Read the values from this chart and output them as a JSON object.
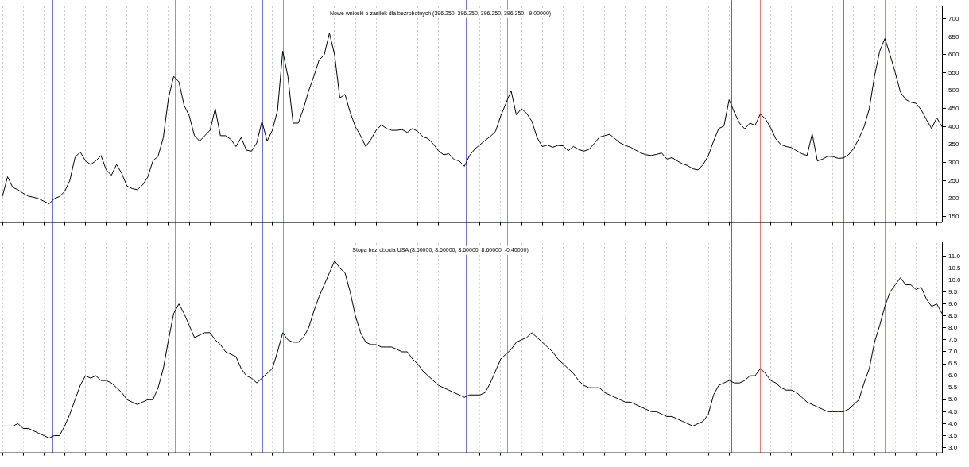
{
  "chart_data": [
    {
      "type": "line",
      "title": "Nowe wnioski o zasiłek dla bezrobotnych (396.250, 396.250, 396.250, 396.250, -9.00000)",
      "grid": "x",
      "legend": false,
      "marker": "none",
      "line_style": "solid",
      "categories": [
        null,
        null,
        null,
        null,
        null,
        null,
        null,
        null,
        null,
        null,
        null,
        null,
        null,
        null,
        null,
        null,
        null,
        null,
        null,
        null,
        null,
        null,
        null,
        null,
        null,
        null,
        null,
        null,
        null,
        null,
        null,
        null,
        null,
        null,
        null,
        null,
        null,
        null,
        null,
        null,
        null,
        null,
        null,
        null,
        null,
        null,
        null,
        null,
        null,
        null,
        null,
        null,
        null,
        null,
        null,
        null,
        null,
        null,
        null,
        null,
        null,
        null,
        null,
        null,
        null,
        null,
        null,
        null,
        null,
        null,
        null,
        null,
        null,
        null,
        null,
        null,
        null,
        null,
        null,
        null,
        null,
        null,
        null,
        null,
        null,
        null,
        null,
        null,
        null,
        null,
        null,
        null,
        null,
        null,
        null,
        null,
        null,
        null,
        null,
        null,
        null,
        null,
        null,
        null,
        null,
        null,
        null,
        null,
        null,
        null,
        null,
        null,
        null,
        null,
        null,
        null,
        null,
        null,
        null,
        null,
        null,
        null,
        null,
        null,
        null,
        null,
        null,
        null,
        null,
        null,
        null,
        null,
        null,
        null,
        null,
        null,
        null,
        null,
        null,
        null,
        null,
        null,
        null,
        null,
        null,
        null,
        null,
        null,
        null,
        null,
        null,
        null,
        null,
        null,
        null,
        null,
        null,
        null,
        null,
        null,
        null,
        null,
        null,
        null,
        null,
        null,
        null,
        null,
        null,
        null,
        null,
        null,
        null,
        null,
        null,
        null,
        null,
        null,
        null,
        null,
        null,
        null
      ],
      "ylim": [
        135,
        735
      ],
      "yticks": [
        150,
        200,
        250,
        300,
        350,
        400,
        450,
        500,
        550,
        600,
        650,
        700
      ],
      "series": [
        {
          "color": "#000000",
          "values": [
            206,
            261,
            231,
            225,
            215,
            207,
            204,
            200,
            193,
            186,
            200,
            206,
            220,
            251,
            315,
            330,
            305,
            295,
            305,
            320,
            280,
            265,
            295,
            270,
            235,
            228,
            225,
            238,
            260,
            305,
            318,
            370,
            480,
            540,
            525,
            460,
            430,
            375,
            360,
            375,
            390,
            450,
            375,
            375,
            365,
            345,
            370,
            335,
            332,
            355,
            415,
            360,
            390,
            445,
            610,
            540,
            410,
            410,
            450,
            500,
            540,
            585,
            600,
            660,
            600,
            480,
            490,
            440,
            400,
            375,
            345,
            365,
            390,
            405,
            395,
            390,
            390,
            392,
            384,
            395,
            387,
            372,
            367,
            352,
            333,
            322,
            325,
            309,
            305,
            290,
            320,
            338,
            350,
            362,
            373,
            387,
            430,
            465,
            500,
            433,
            450,
            437,
            415,
            370,
            345,
            349,
            343,
            348,
            347,
            333,
            345,
            337,
            332,
            337,
            353,
            371,
            375,
            379,
            367,
            355,
            348,
            343,
            335,
            327,
            322,
            320,
            323,
            327,
            310,
            314,
            305,
            297,
            292,
            283,
            280,
            295,
            320,
            360,
            395,
            402,
            475,
            440,
            410,
            394,
            410,
            404,
            435,
            422,
            397,
            366,
            350,
            345,
            342,
            333,
            325,
            320,
            380,
            305,
            310,
            318,
            317,
            312,
            313,
            322,
            340,
            367,
            400,
            450,
            540,
            610,
            645,
            600,
            550,
            496,
            476,
            468,
            465,
            447,
            420,
            395,
            425,
            400
          ]
        }
      ]
    },
    {
      "type": "line",
      "title": "Stopa bezrobocia USA (8.60000, 8.60000, 8.60000, 8.60000, -0.40000)",
      "grid": "x",
      "legend": false,
      "marker": "none",
      "line_style": "solid",
      "categories": [
        null,
        null,
        null,
        null,
        null,
        null,
        null,
        null,
        null,
        null,
        null,
        null,
        null,
        null,
        null,
        null,
        null,
        null,
        null,
        null,
        null,
        null,
        null,
        null,
        null,
        null,
        null,
        null,
        null,
        null,
        null,
        null,
        null,
        null,
        null,
        null,
        null,
        null,
        null,
        null,
        null,
        null,
        null,
        null,
        null,
        null,
        null,
        null,
        null,
        null,
        null,
        null,
        null,
        null,
        null,
        null,
        null,
        null,
        null,
        null,
        null,
        null,
        null,
        null,
        null,
        null,
        null,
        null,
        null,
        null,
        null,
        null,
        null,
        null,
        null,
        null,
        null,
        null,
        null,
        null,
        null,
        null,
        null,
        null,
        null,
        null,
        null,
        null,
        null,
        null,
        null,
        null,
        null,
        null,
        null,
        null,
        null,
        null,
        null,
        null,
        null,
        null,
        null,
        null,
        null,
        null,
        null,
        null,
        null,
        null,
        null,
        null,
        null,
        null,
        null,
        null,
        null,
        null,
        null,
        null,
        null,
        null,
        null,
        null,
        null,
        null,
        null,
        null,
        null,
        null,
        null,
        null,
        null,
        null,
        null,
        null,
        null,
        null,
        null,
        null,
        null,
        null,
        null,
        null,
        null,
        null,
        null,
        null,
        null,
        null,
        null,
        null,
        null,
        null,
        null,
        null,
        null,
        null,
        null,
        null,
        null,
        null,
        null,
        null,
        null,
        null,
        null,
        null,
        null,
        null,
        null,
        null,
        null,
        null,
        null,
        null,
        null,
        null,
        null,
        null,
        null,
        null
      ],
      "ylim": [
        2.8,
        11.55
      ],
      "yticks": [
        {
          "value": 3,
          "label": "3.0"
        },
        3.5,
        {
          "value": 4,
          "label": "4.0"
        },
        4.5,
        {
          "value": 5,
          "label": "5.0"
        },
        5.5,
        {
          "value": 6,
          "label": "6.0"
        },
        6.5,
        {
          "value": 7,
          "label": "7.0"
        },
        7.5,
        {
          "value": 8,
          "label": "8.0"
        },
        8.5,
        {
          "value": 9,
          "label": "9.0"
        },
        9.5,
        {
          "value": 10,
          "label": "10.0"
        },
        10.5,
        {
          "value": 11,
          "label": "11.0"
        }
      ],
      "series": [
        {
          "color": "#000000",
          "values": [
            3.9,
            3.9,
            3.9,
            4.0,
            3.8,
            3.8,
            3.7,
            3.6,
            3.5,
            3.4,
            3.5,
            3.5,
            3.9,
            4.4,
            5.0,
            5.6,
            6.0,
            5.9,
            6.0,
            5.8,
            5.8,
            5.7,
            5.5,
            5.3,
            5.0,
            4.9,
            4.8,
            4.9,
            5.0,
            5.0,
            5.5,
            6.3,
            7.5,
            8.6,
            9.0,
            8.6,
            8.1,
            7.6,
            7.7,
            7.8,
            7.8,
            7.5,
            7.3,
            7.0,
            6.9,
            6.8,
            6.3,
            6.0,
            5.9,
            5.7,
            5.9,
            6.1,
            6.3,
            7.0,
            7.8,
            7.5,
            7.4,
            7.4,
            7.6,
            8.0,
            8.7,
            9.3,
            9.8,
            10.3,
            10.8,
            10.5,
            10.3,
            9.5,
            8.5,
            7.8,
            7.4,
            7.3,
            7.3,
            7.2,
            7.2,
            7.2,
            7.1,
            7.0,
            7.0,
            6.7,
            6.5,
            6.2,
            6.0,
            5.8,
            5.6,
            5.5,
            5.4,
            5.3,
            5.2,
            5.1,
            5.2,
            5.2,
            5.2,
            5.3,
            5.7,
            6.2,
            6.7,
            6.9,
            7.1,
            7.4,
            7.5,
            7.6,
            7.8,
            7.6,
            7.4,
            7.2,
            7.0,
            6.7,
            6.5,
            6.3,
            6.1,
            5.8,
            5.6,
            5.5,
            5.5,
            5.5,
            5.3,
            5.2,
            5.1,
            5.0,
            4.9,
            4.9,
            4.8,
            4.7,
            4.6,
            4.5,
            4.5,
            4.4,
            4.3,
            4.3,
            4.2,
            4.1,
            4.0,
            3.9,
            4.0,
            4.1,
            4.4,
            5.2,
            5.6,
            5.7,
            5.8,
            5.7,
            5.7,
            5.8,
            6.0,
            6.0,
            6.3,
            6.1,
            5.8,
            5.7,
            5.5,
            5.4,
            5.4,
            5.3,
            5.1,
            4.9,
            4.8,
            4.7,
            4.6,
            4.5,
            4.5,
            4.5,
            4.5,
            4.6,
            4.8,
            5.0,
            5.7,
            6.3,
            7.4,
            8.1,
            8.9,
            9.5,
            9.8,
            10.1,
            9.8,
            9.8,
            9.6,
            9.7,
            9.2,
            8.9,
            9.0,
            8.6
          ]
        }
      ]
    }
  ]
}
